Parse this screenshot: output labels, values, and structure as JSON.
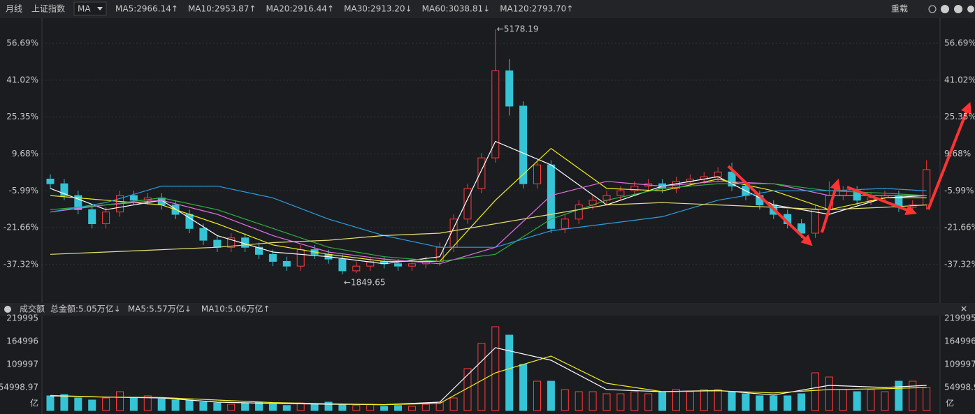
{
  "toolbar": {
    "period": "月线",
    "symbol": "上证指数",
    "indicator": "MA",
    "reload": "重载"
  },
  "chart_data": [
    {
      "type": "candlestick",
      "up_color": "#ff3b3b",
      "down_color": "#35c3d6",
      "tick_up_color": "#ff4d4d",
      "tick_down_color": "#d8d840",
      "ylim": [
        -51,
        64.7
      ],
      "yticks": [
        {
          "value": 56.69,
          "label": "56.69%"
        },
        {
          "value": 41.02,
          "label": "41.02%"
        },
        {
          "value": 25.35,
          "label": "25.35%"
        },
        {
          "value": 9.68,
          "label": "9.68%"
        },
        {
          "value": -5.99,
          "label": "-5.99%"
        },
        {
          "value": -21.66,
          "label": "-21.66%"
        },
        {
          "value": -37.32,
          "label": "-37.32%"
        }
      ],
      "grid": true,
      "max_label": "←5178.19",
      "min_label": "←1849.65",
      "open": [
        -1,
        -3,
        -8,
        -14,
        -20,
        -15,
        -8,
        -10,
        -9,
        -12,
        -16,
        -22,
        -27,
        -30,
        -26,
        -30,
        -33,
        -36,
        -38,
        -31,
        -33,
        -35,
        -40,
        -38,
        -36,
        -37,
        -38,
        -37,
        -36,
        -30,
        -18,
        -5,
        8,
        45,
        30,
        -3,
        5,
        -22,
        -18,
        -12,
        -10,
        -8,
        -6,
        -4,
        -3,
        -5,
        -2,
        -1,
        0,
        2,
        -4,
        -8,
        -12,
        -16,
        -20,
        -24,
        -14,
        -8,
        -6,
        -10,
        -9,
        -8,
        -13,
        -12
      ],
      "high": [
        1,
        -1,
        -6,
        -12,
        -13,
        -6,
        -6,
        -7,
        -7,
        -10,
        -14,
        -20,
        -25,
        -24,
        -24,
        -28,
        -31,
        -34,
        -29,
        -29,
        -31,
        -33,
        -36,
        -34,
        -34,
        -35,
        -35,
        -34,
        -28,
        -16,
        -3,
        10,
        62.6,
        50,
        32,
        7,
        7,
        -16,
        -10,
        -8,
        -6,
        -4,
        -2,
        -1,
        -1,
        0,
        1,
        2,
        4,
        6,
        -2,
        -6,
        -10,
        -14,
        -18,
        -12,
        -2,
        -4,
        -4,
        -7,
        -6,
        -6,
        -10,
        7
      ],
      "low": [
        -5,
        -10,
        -16,
        -22,
        -22,
        -17,
        -12,
        -12,
        -14,
        -18,
        -24,
        -29,
        -32,
        -32,
        -32,
        -35,
        -38,
        -40,
        -40,
        -35,
        -37,
        -41.5,
        -41,
        -40,
        -39,
        -40,
        -40,
        -39,
        -38,
        -32,
        -20,
        -7,
        6,
        26,
        -5,
        -5,
        -24,
        -24,
        -20,
        -14,
        -12,
        -10,
        -8,
        -6,
        -7,
        -7,
        -4,
        -3,
        -2,
        -6,
        -10,
        -14,
        -18,
        -22,
        -26,
        -26,
        -16,
        -10,
        -12,
        -12,
        -11,
        -15,
        -15,
        -14
      ],
      "close": [
        -3,
        -8,
        -14,
        -20,
        -15,
        -8,
        -10,
        -9,
        -12,
        -16,
        -22,
        -27,
        -30,
        -26,
        -30,
        -33,
        -36,
        -38,
        -31,
        -33,
        -35,
        -40,
        -38,
        -36,
        -37,
        -38,
        -37,
        -36,
        -30,
        -18,
        -5,
        8,
        45,
        30,
        -3,
        5,
        -22,
        -18,
        -12,
        -10,
        -8,
        -6,
        -4,
        -3,
        -5,
        -2,
        -1,
        0,
        2,
        -4,
        -8,
        -12,
        -16,
        -20,
        -24,
        -14,
        -8,
        -6,
        -10,
        -9,
        -8,
        -13,
        -12,
        3
      ],
      "series": [
        {
          "name": "MA5:2966.14",
          "trend": "↑",
          "trend_color": "#ff3b3b",
          "color": "#ffffff",
          "x": [
            0,
            4,
            8,
            12,
            16,
            20,
            24,
            28,
            32,
            36,
            40,
            44,
            48,
            52,
            56,
            60,
            63
          ],
          "values": [
            -5,
            -14,
            -10,
            -25,
            -32,
            -34,
            -37,
            -34,
            15,
            5,
            -12,
            -4,
            0,
            -12,
            -16,
            -9,
            -8
          ]
        },
        {
          "name": "MA10:2953.87",
          "trend": "↑",
          "trend_color": "#ff3b3b",
          "color": "#f0f020",
          "x": [
            0,
            4,
            8,
            12,
            16,
            20,
            24,
            28,
            32,
            36,
            40,
            44,
            48,
            52,
            56,
            60,
            63
          ],
          "values": [
            -8,
            -10,
            -12,
            -20,
            -29,
            -33,
            -36,
            -36,
            -10,
            12,
            -5,
            -6,
            -1,
            -6,
            -14,
            -9,
            -9
          ]
        },
        {
          "name": "MA20:2916.44",
          "trend": "↑",
          "trend_color": "#ff3b3b",
          "color": "#e070e0",
          "x": [
            0,
            4,
            8,
            12,
            16,
            20,
            24,
            28,
            32,
            36,
            40,
            44,
            48,
            52,
            56,
            60,
            63
          ],
          "values": [
            -15,
            -12,
            -10,
            -16,
            -25,
            -32,
            -35,
            -37,
            -30,
            -8,
            -2,
            -4,
            -2,
            -3,
            -8,
            -8,
            -8
          ]
        },
        {
          "name": "MA30:2913.20",
          "trend": "↓",
          "trend_color": "#20d040",
          "color": "#30b040",
          "x": [
            0,
            4,
            8,
            12,
            16,
            20,
            24,
            28,
            32,
            36,
            40,
            44,
            48,
            52,
            56,
            60,
            63
          ],
          "values": [
            -14,
            -12,
            -9,
            -14,
            -22,
            -30,
            -34,
            -36,
            -33,
            -18,
            -10,
            -5,
            -3,
            -3,
            -6,
            -7,
            -8
          ]
        },
        {
          "name": "MA60:3038.81",
          "trend": "↓",
          "trend_color": "#20d040",
          "color": "#2a9fe0",
          "x": [
            0,
            4,
            8,
            12,
            16,
            20,
            24,
            28,
            32,
            36,
            40,
            44,
            48,
            52,
            56,
            60,
            63
          ],
          "values": [
            -15,
            -11,
            -4,
            -4,
            -9,
            -18,
            -25,
            -30,
            -30,
            -23,
            -20,
            -17,
            -10,
            -6,
            -6,
            -5,
            -6
          ]
        },
        {
          "name": "MA120:2793.70",
          "trend": "↑",
          "trend_color": "#ff3b3b",
          "color": "#e8e070",
          "x": [
            0,
            4,
            8,
            12,
            16,
            20,
            24,
            28,
            32,
            36,
            40,
            44,
            48,
            52,
            56,
            60,
            63
          ],
          "values": [
            -33,
            -32,
            -31,
            -30,
            -28,
            -27,
            -25,
            -24,
            -20,
            -16,
            -12,
            -11,
            -12,
            -13,
            -14,
            -13,
            -12
          ]
        }
      ]
    },
    {
      "type": "bar",
      "title": "成交额",
      "total": "总金额:5.05万亿",
      "total_trend": "↓",
      "unit": "亿",
      "ylim": [
        0,
        226700
      ],
      "yticks": [
        219995,
        164996,
        109997,
        54998.97
      ],
      "grid": false,
      "values": [
        35000,
        38000,
        30000,
        25000,
        30000,
        45000,
        30000,
        35000,
        28000,
        25000,
        25000,
        20000,
        18000,
        15000,
        18000,
        20000,
        15000,
        12000,
        18000,
        15000,
        20000,
        15000,
        12000,
        15000,
        10000,
        12000,
        10000,
        15000,
        20000,
        30000,
        100000,
        160000,
        200000,
        180000,
        110000,
        70000,
        70000,
        50000,
        45000,
        45000,
        40000,
        40000,
        45000,
        40000,
        45000,
        50000,
        45000,
        50000,
        50000,
        45000,
        40000,
        35000,
        35000,
        35000,
        40000,
        90000,
        80000,
        50000,
        45000,
        50000,
        45000,
        70000,
        70000,
        55000
      ],
      "series": [
        {
          "name": "MA5:5.57万亿",
          "trend": "↓",
          "trend_color": "#20d040",
          "color": "#ffffff",
          "x": [
            0,
            4,
            8,
            12,
            16,
            20,
            24,
            28,
            32,
            36,
            40,
            44,
            48,
            52,
            56,
            60,
            63
          ],
          "values": [
            35000,
            32000,
            30000,
            20000,
            17000,
            15000,
            14000,
            20000,
            150000,
            120000,
            50000,
            45000,
            48000,
            37000,
            60000,
            55000,
            60000
          ]
        },
        {
          "name": "MA10:5.06万亿",
          "trend": "↑",
          "trend_color": "#ff3b3b",
          "color": "#f0f020",
          "x": [
            0,
            4,
            8,
            12,
            16,
            20,
            24,
            28,
            32,
            36,
            40,
            44,
            48,
            52,
            56,
            60,
            63
          ],
          "values": [
            36000,
            32000,
            31000,
            25000,
            19000,
            16000,
            14000,
            17000,
            90000,
            130000,
            65000,
            45000,
            47000,
            42000,
            50000,
            52000,
            55000
          ]
        }
      ]
    }
  ]
}
